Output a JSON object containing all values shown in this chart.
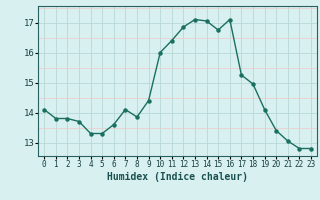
{
  "x": [
    0,
    1,
    2,
    3,
    4,
    5,
    6,
    7,
    8,
    9,
    10,
    11,
    12,
    13,
    14,
    15,
    16,
    17,
    18,
    19,
    20,
    21,
    22,
    23
  ],
  "y": [
    14.1,
    13.8,
    13.8,
    13.7,
    13.3,
    13.3,
    13.6,
    14.1,
    13.85,
    14.4,
    16.0,
    16.4,
    16.85,
    17.1,
    17.05,
    16.75,
    17.1,
    15.25,
    14.95,
    14.1,
    13.4,
    13.05,
    12.8,
    12.8
  ],
  "line_color": "#1a7060",
  "marker_color": "#1a7060",
  "bg_color": "#d8f0f0",
  "grid_color_major": "#b8d8d8",
  "grid_color_minor": "#f0c8c8",
  "xlabel": "Humidex (Indice chaleur)",
  "ylabel_ticks": [
    13,
    14,
    15,
    16,
    17
  ],
  "ylim": [
    12.55,
    17.55
  ],
  "xlim": [
    -0.5,
    23.5
  ]
}
